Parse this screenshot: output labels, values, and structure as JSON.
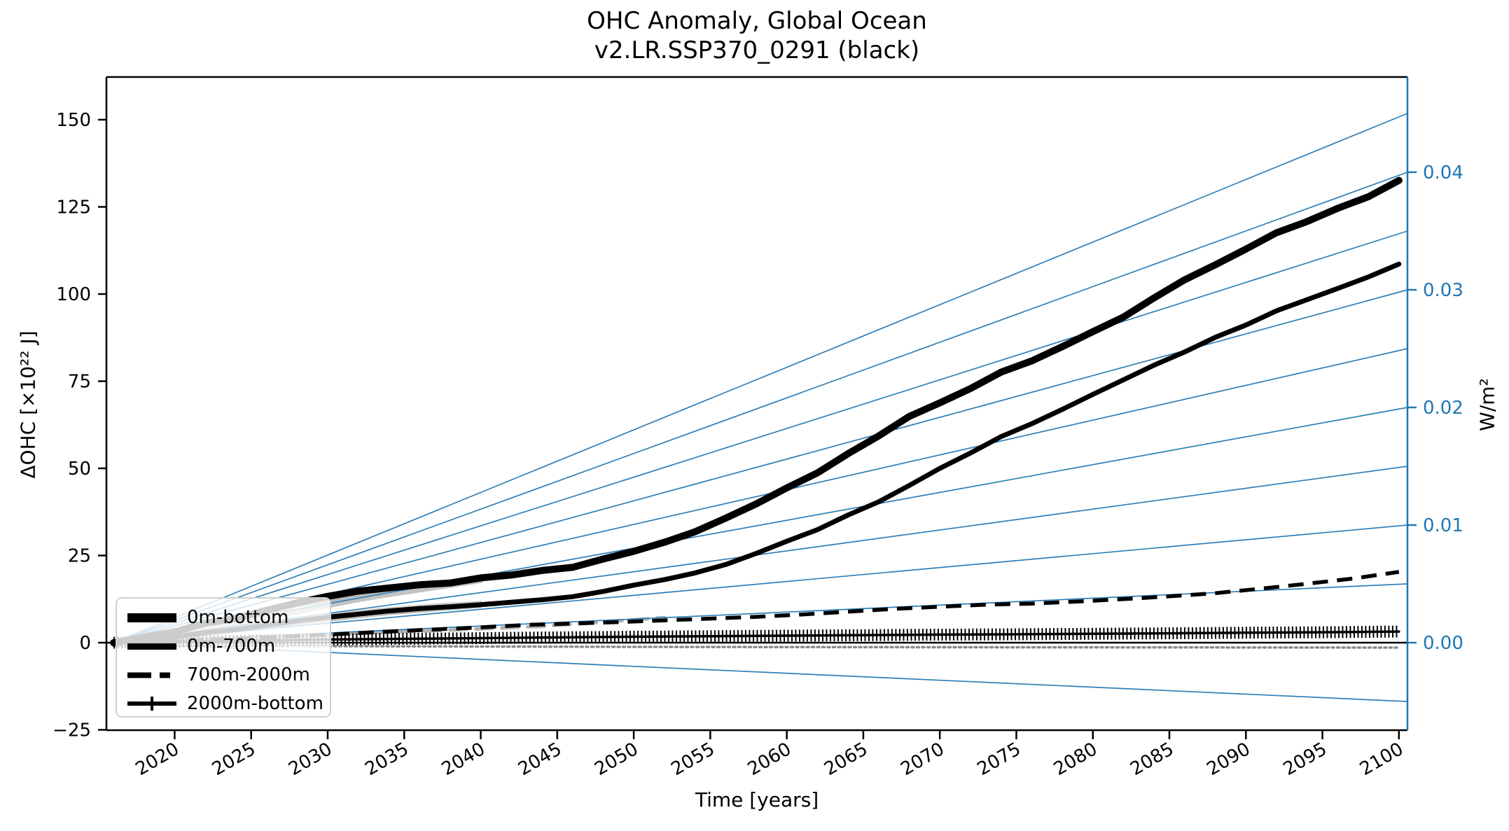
{
  "chart_data": {
    "type": "line",
    "title_line1": "OHC Anomaly, Global Ocean",
    "title_line2": "v2.LR.SSP370_0291 (black)",
    "xlabel": "Time [years]",
    "ylabel_left": "ΔOHC [×10²² J]",
    "ylabel_right": "W/m²",
    "xlim": [
      2015.5,
      2100.5
    ],
    "ylim_left": [
      -25.1,
      162.4
    ],
    "ylim_right": [
      -0.0074,
      0.0481
    ],
    "grid": false,
    "legend_position": "lower left",
    "x_ticks": [
      2020,
      2025,
      2030,
      2035,
      2040,
      2045,
      2050,
      2055,
      2060,
      2065,
      2070,
      2075,
      2080,
      2085,
      2090,
      2095,
      2100
    ],
    "y_ticks_left": [
      {
        "v": -25,
        "label": "−25"
      },
      {
        "v": 0,
        "label": "0"
      },
      {
        "v": 25,
        "label": "25"
      },
      {
        "v": 50,
        "label": "50"
      },
      {
        "v": 75,
        "label": "75"
      },
      {
        "v": 100,
        "label": "100"
      },
      {
        "v": 125,
        "label": "125"
      },
      {
        "v": 150,
        "label": "150"
      }
    ],
    "y_ticks_right": [
      {
        "v": 0.0,
        "label": "0.00"
      },
      {
        "v": 0.01,
        "label": "0.01"
      },
      {
        "v": 0.02,
        "label": "0.02"
      },
      {
        "v": 0.03,
        "label": "0.03"
      },
      {
        "v": 0.04,
        "label": "0.04"
      }
    ],
    "fan_origin_year": 2016,
    "fan_lines_wm2": [
      -0.005,
      0.0,
      0.005,
      0.01,
      0.015,
      0.02,
      0.025,
      0.03,
      0.035,
      0.04,
      0.045
    ],
    "colors": {
      "curves": "#000000",
      "axis_right": "#1f77b4",
      "fan": "#2f7fb8",
      "zero_line": "#000000"
    },
    "series": [
      {
        "name": "0m-bottom",
        "style": "solid-thick",
        "points": [
          [
            2016,
            0
          ],
          [
            2018,
            1.6
          ],
          [
            2020,
            3.1
          ],
          [
            2022,
            5.6
          ],
          [
            2024,
            6.9
          ],
          [
            2026,
            9.3
          ],
          [
            2028,
            11.4
          ],
          [
            2030,
            13.3
          ],
          [
            2032,
            14.8
          ],
          [
            2034,
            15.7
          ],
          [
            2036,
            16.6
          ],
          [
            2038,
            17.1
          ],
          [
            2040,
            18.6
          ],
          [
            2042,
            19.4
          ],
          [
            2044,
            20.7
          ],
          [
            2046,
            21.6
          ],
          [
            2048,
            24.0
          ],
          [
            2050,
            26.2
          ],
          [
            2052,
            28.8
          ],
          [
            2054,
            31.8
          ],
          [
            2056,
            35.7
          ],
          [
            2058,
            39.8
          ],
          [
            2060,
            44.4
          ],
          [
            2062,
            48.7
          ],
          [
            2064,
            54.2
          ],
          [
            2066,
            59.3
          ],
          [
            2068,
            64.9
          ],
          [
            2070,
            68.8
          ],
          [
            2072,
            72.9
          ],
          [
            2074,
            77.6
          ],
          [
            2076,
            80.8
          ],
          [
            2078,
            84.9
          ],
          [
            2080,
            89.2
          ],
          [
            2082,
            93.4
          ],
          [
            2084,
            98.9
          ],
          [
            2086,
            104.1
          ],
          [
            2088,
            108.4
          ],
          [
            2090,
            112.9
          ],
          [
            2092,
            117.6
          ],
          [
            2094,
            120.8
          ],
          [
            2096,
            124.6
          ],
          [
            2098,
            127.9
          ],
          [
            2100,
            132.6
          ]
        ]
      },
      {
        "name": "0m-700m",
        "style": "solid",
        "points": [
          [
            2016,
            0
          ],
          [
            2018,
            0.8
          ],
          [
            2020,
            1.6
          ],
          [
            2022,
            2.9
          ],
          [
            2024,
            3.8
          ],
          [
            2026,
            5.0
          ],
          [
            2028,
            6.2
          ],
          [
            2030,
            7.3
          ],
          [
            2032,
            8.2
          ],
          [
            2034,
            9.1
          ],
          [
            2036,
            9.8
          ],
          [
            2038,
            10.3
          ],
          [
            2040,
            10.9
          ],
          [
            2042,
            11.6
          ],
          [
            2044,
            12.3
          ],
          [
            2046,
            13.2
          ],
          [
            2048,
            14.7
          ],
          [
            2050,
            16.5
          ],
          [
            2052,
            18.1
          ],
          [
            2054,
            20.0
          ],
          [
            2056,
            22.4
          ],
          [
            2058,
            25.6
          ],
          [
            2060,
            29.1
          ],
          [
            2062,
            32.4
          ],
          [
            2064,
            36.6
          ],
          [
            2066,
            40.4
          ],
          [
            2068,
            45.1
          ],
          [
            2070,
            50.0
          ],
          [
            2072,
            54.4
          ],
          [
            2074,
            59.1
          ],
          [
            2076,
            62.8
          ],
          [
            2078,
            66.9
          ],
          [
            2080,
            71.2
          ],
          [
            2082,
            75.4
          ],
          [
            2084,
            79.6
          ],
          [
            2086,
            83.4
          ],
          [
            2088,
            87.6
          ],
          [
            2090,
            91.1
          ],
          [
            2092,
            95.2
          ],
          [
            2094,
            98.4
          ],
          [
            2096,
            101.6
          ],
          [
            2098,
            104.9
          ],
          [
            2100,
            108.6
          ]
        ]
      },
      {
        "name": "700m-2000m",
        "style": "dashed",
        "points": [
          [
            2016,
            0
          ],
          [
            2019,
            0.4
          ],
          [
            2022,
            0.9
          ],
          [
            2025,
            1.3
          ],
          [
            2028,
            1.9
          ],
          [
            2031,
            2.5
          ],
          [
            2034,
            3.2
          ],
          [
            2037,
            3.8
          ],
          [
            2040,
            4.4
          ],
          [
            2043,
            5.1
          ],
          [
            2046,
            5.5
          ],
          [
            2049,
            5.9
          ],
          [
            2052,
            6.4
          ],
          [
            2055,
            6.9
          ],
          [
            2058,
            7.4
          ],
          [
            2061,
            8.1
          ],
          [
            2064,
            8.9
          ],
          [
            2067,
            9.7
          ],
          [
            2070,
            10.3
          ],
          [
            2073,
            10.9
          ],
          [
            2076,
            11.2
          ],
          [
            2079,
            11.8
          ],
          [
            2082,
            12.5
          ],
          [
            2085,
            13.3
          ],
          [
            2088,
            14.2
          ],
          [
            2091,
            15.5
          ],
          [
            2094,
            16.9
          ],
          [
            2097,
            18.4
          ],
          [
            2100,
            20.3
          ]
        ]
      },
      {
        "name": "2000m-bottom",
        "style": "solid-plus-markers",
        "points": [
          [
            2016,
            0
          ],
          [
            2020,
            0.3
          ],
          [
            2025,
            0.6
          ],
          [
            2030,
            0.9
          ],
          [
            2035,
            1.1
          ],
          [
            2040,
            1.3
          ],
          [
            2045,
            1.5
          ],
          [
            2050,
            1.7
          ],
          [
            2055,
            1.85
          ],
          [
            2060,
            2.0
          ],
          [
            2065,
            2.15
          ],
          [
            2070,
            2.3
          ],
          [
            2075,
            2.4
          ],
          [
            2080,
            2.55
          ],
          [
            2085,
            2.7
          ],
          [
            2090,
            2.85
          ],
          [
            2095,
            3.0
          ],
          [
            2100,
            3.2
          ]
        ]
      }
    ],
    "ensemble_gray": [
      {
        "style": "solid",
        "width": 8,
        "color": "#b4b4b4",
        "points": [
          [
            2016,
            0
          ],
          [
            2018,
            1.2
          ],
          [
            2020,
            3.4
          ],
          [
            2022,
            5.0
          ],
          [
            2024,
            7.0
          ],
          [
            2026,
            8.6
          ],
          [
            2028,
            10.9
          ],
          [
            2030,
            12.1
          ],
          [
            2032,
            13.5
          ],
          [
            2034,
            14.7
          ],
          [
            2036,
            15.9
          ],
          [
            2038,
            17.1
          ],
          [
            2040,
            18.3
          ]
        ]
      },
      {
        "style": "solid",
        "width": 8,
        "color": "#c3c3c3",
        "points": [
          [
            2016,
            0
          ],
          [
            2018,
            0.8
          ],
          [
            2020,
            2.1
          ],
          [
            2022,
            3.9
          ],
          [
            2024,
            5.3
          ],
          [
            2026,
            7.4
          ],
          [
            2028,
            8.9
          ],
          [
            2030,
            10.7
          ],
          [
            2032,
            12.4
          ],
          [
            2034,
            13.9
          ],
          [
            2036,
            15.2
          ],
          [
            2038,
            16.5
          ],
          [
            2040,
            17.9
          ]
        ]
      },
      {
        "style": "solid",
        "width": 6,
        "color": "#bcbcbc",
        "points": [
          [
            2016,
            0
          ],
          [
            2018,
            0.5
          ],
          [
            2020,
            1.3
          ],
          [
            2022,
            2.4
          ],
          [
            2024,
            3.4
          ],
          [
            2026,
            4.6
          ],
          [
            2028,
            5.6
          ],
          [
            2030,
            6.6
          ],
          [
            2032,
            7.6
          ],
          [
            2034,
            8.5
          ],
          [
            2036,
            9.2
          ],
          [
            2038,
            9.9
          ],
          [
            2040,
            10.6
          ]
        ]
      },
      {
        "style": "solid",
        "width": 6,
        "color": "#cccccc",
        "points": [
          [
            2016,
            0
          ],
          [
            2018,
            0.9
          ],
          [
            2020,
            1.9
          ],
          [
            2022,
            3.1
          ],
          [
            2024,
            4.3
          ],
          [
            2026,
            5.5
          ],
          [
            2028,
            6.5
          ],
          [
            2030,
            7.8
          ],
          [
            2032,
            8.7
          ],
          [
            2034,
            9.6
          ],
          [
            2036,
            10.3
          ],
          [
            2038,
            10.9
          ],
          [
            2040,
            11.4
          ]
        ]
      },
      {
        "style": "dashed",
        "width": 5,
        "color": "#b0b0b0",
        "points": [
          [
            2016,
            0
          ],
          [
            2020,
            0.4
          ],
          [
            2024,
            1.0
          ],
          [
            2028,
            1.9
          ],
          [
            2032,
            2.7
          ],
          [
            2036,
            3.3
          ],
          [
            2040,
            4.0
          ],
          [
            2044,
            4.7
          ],
          [
            2048,
            5.9
          ],
          [
            2052,
            7.2
          ]
        ]
      },
      {
        "style": "dotted",
        "width": 3.5,
        "color": "#8a8a8a",
        "points": [
          [
            2016,
            -0.9
          ],
          [
            2030,
            -1.0
          ],
          [
            2050,
            -1.2
          ],
          [
            2070,
            -1.3
          ],
          [
            2100,
            -1.4
          ]
        ]
      }
    ]
  },
  "legend": {
    "items": [
      {
        "label": "0m-bottom",
        "key": "solid-thick"
      },
      {
        "label": "0m-700m",
        "key": "solid"
      },
      {
        "label": "700m-2000m",
        "key": "dashed"
      },
      {
        "label": "2000m-bottom",
        "key": "solid-plus"
      }
    ]
  }
}
